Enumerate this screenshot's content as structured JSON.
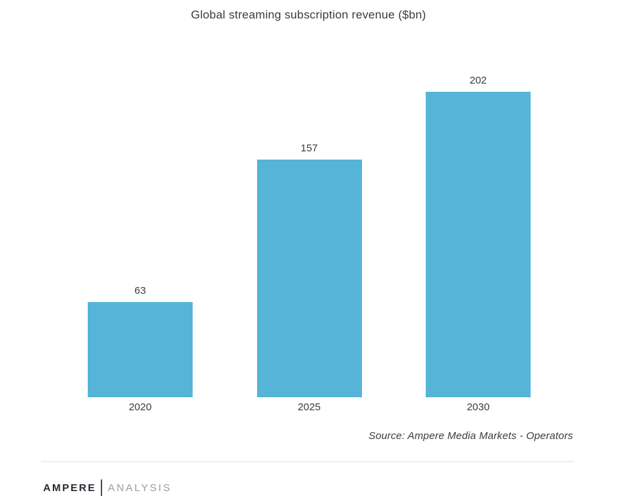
{
  "title": "Global streaming subscription revenue ($bn)",
  "chart_data": {
    "type": "bar",
    "categories": [
      "2020",
      "2025",
      "2030"
    ],
    "values": [
      63,
      157,
      202
    ],
    "value_labels": [
      "63",
      "157",
      "202"
    ],
    "title": "Global streaming subscription revenue ($bn)",
    "xlabel": "",
    "ylabel": "",
    "ylim": [
      0,
      210
    ],
    "grid": false,
    "legend": false,
    "bar_color": "#56b4d8"
  },
  "source_note": "Source: Ampere Media Markets - Operators",
  "footer": {
    "brand_primary": "AMPERE",
    "brand_secondary": "ANALYSIS"
  },
  "colors": {
    "bar": "#56b4d8",
    "text": "#3c3c3c",
    "divider": "#ededed",
    "brand_dark": "#262a31",
    "brand_gray": "#989ca3"
  }
}
